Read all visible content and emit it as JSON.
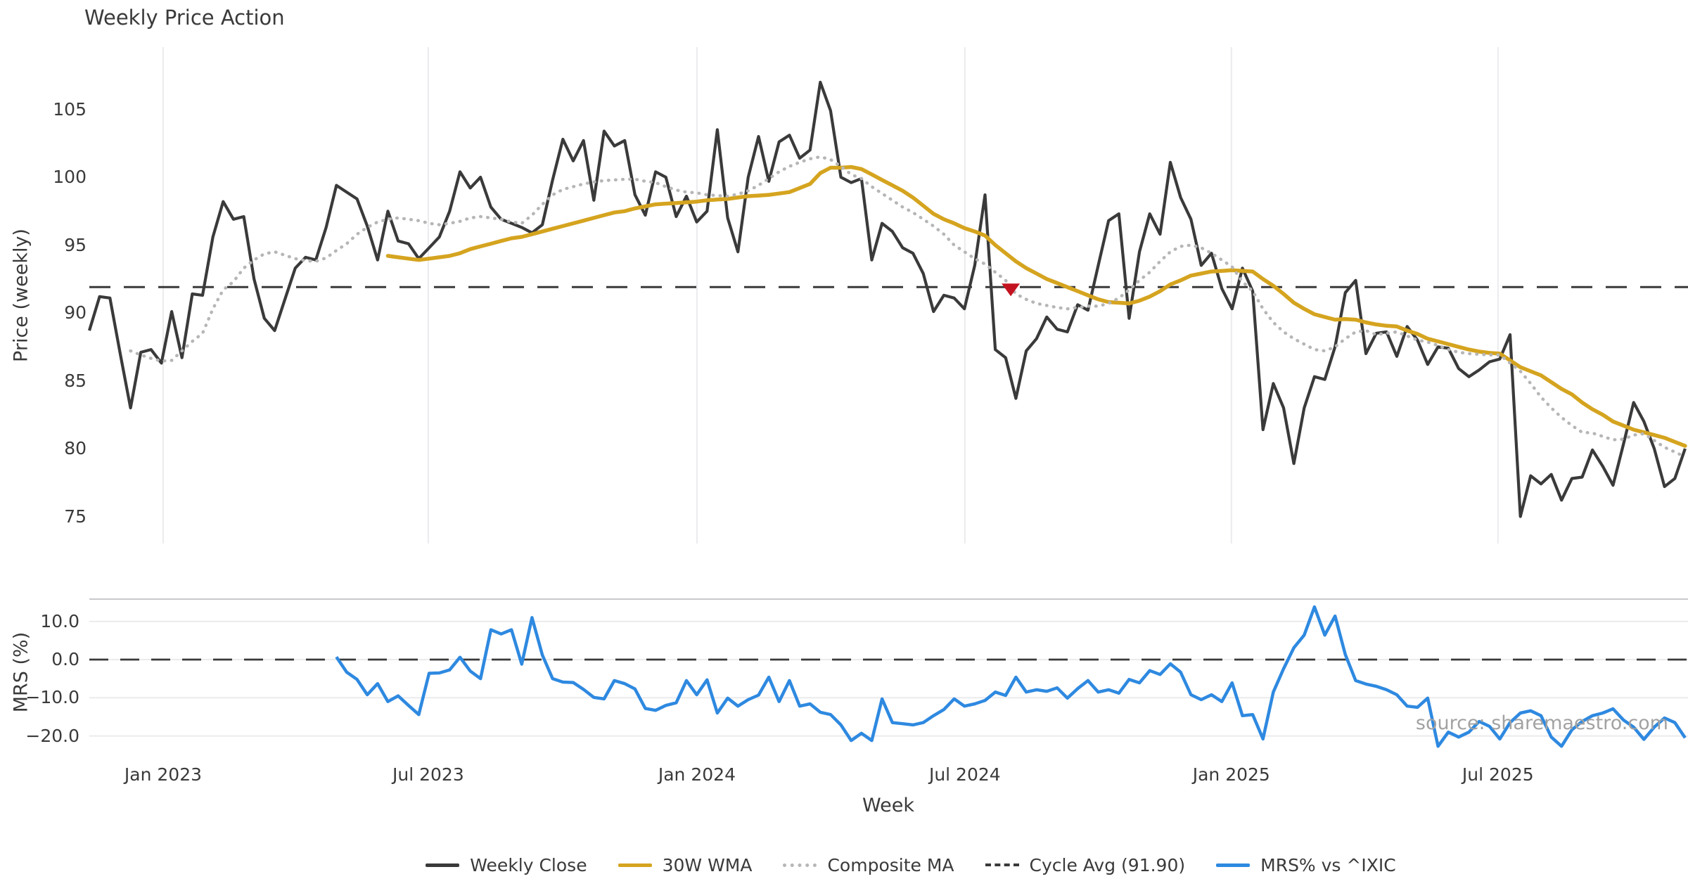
{
  "title": "Weekly Price Action",
  "watermark": "source: sharemaestro.com",
  "colors": {
    "dark": "#3a3a3a",
    "gold": "#d5a41f",
    "composite": "#b6b6b8",
    "blue": "#2e89e0",
    "red": "#c41320",
    "gridline": "#ebebee",
    "spine": "#c9c9cc",
    "watermark": "#a2a2a2"
  },
  "legend": [
    {
      "label": "Weekly Close",
      "style": "solid",
      "color": "#3a3a3a"
    },
    {
      "label": "30W WMA",
      "style": "solid",
      "color": "#d5a41f"
    },
    {
      "label": "Composite MA",
      "style": "dotted",
      "color": "#b6b6b8"
    },
    {
      "label": "Cycle Avg (91.90)",
      "style": "dashed",
      "color": "#3a3a3a"
    },
    {
      "label": "MRS% vs ^IXIC",
      "style": "solid",
      "color": "#2e89e0"
    }
  ],
  "chart_data": {
    "type": "line",
    "title": "Weekly Price Action",
    "xlabel": "Week",
    "x_unit": "weeks starting mid-Nov 2022",
    "cycle_avg": 91.9,
    "sell_marker": {
      "week": 89.5,
      "price": 91.75
    },
    "x_ticks": [
      {
        "label": "Jan 2023",
        "week": 7.17
      },
      {
        "label": "Jul 2023",
        "week": 32.92
      },
      {
        "label": "Jan 2024",
        "week": 59.02
      },
      {
        "label": "Jul 2024",
        "week": 85.04
      },
      {
        "label": "Jan 2025",
        "week": 110.93
      },
      {
        "label": "Jul 2025",
        "week": 136.82
      }
    ],
    "panels": [
      {
        "name": "price",
        "ylabel": "Price (weekly)",
        "ylim": [
          72.8,
          109.5
        ],
        "grid": "vertical",
        "yticks": [
          {
            "label": "105",
            "value": 105
          },
          {
            "label": "100",
            "value": 100
          },
          {
            "label": "95",
            "value": 95
          },
          {
            "label": "90",
            "value": 90
          },
          {
            "label": "85",
            "value": 85
          },
          {
            "label": "80",
            "value": 80
          },
          {
            "label": "75",
            "value": 75
          }
        ]
      },
      {
        "name": "mrs",
        "ylabel": "MRS (%)",
        "ylim": [
          -23.4,
          15.8
        ],
        "grid": "horizontal",
        "yticks": [
          {
            "label": "10.0",
            "value": 10
          },
          {
            "label": "0.0",
            "value": 0
          },
          {
            "label": "−10.0",
            "value": -10
          },
          {
            "label": "−20.0",
            "value": -20
          }
        ]
      }
    ],
    "series": [
      {
        "name": "Weekly Close",
        "panel": "price",
        "start_week": 0,
        "values": [
          88.7,
          91.2,
          91.1,
          87.0,
          83.0,
          87.1,
          87.3,
          86.3,
          90.1,
          86.7,
          91.4,
          91.3,
          95.6,
          98.2,
          96.9,
          97.1,
          92.5,
          89.6,
          88.7,
          91.0,
          93.3,
          94.1,
          93.9,
          96.3,
          99.4,
          98.9,
          98.4,
          96.4,
          93.9,
          97.5,
          95.3,
          95.1,
          94.0,
          94.8,
          95.6,
          97.5,
          100.4,
          99.2,
          100.0,
          97.8,
          96.9,
          96.6,
          96.3,
          95.9,
          96.5,
          99.8,
          102.8,
          101.2,
          102.7,
          98.3,
          103.4,
          102.3,
          102.7,
          98.7,
          97.2,
          100.4,
          100.0,
          97.1,
          98.6,
          96.7,
          97.5,
          103.5,
          97.0,
          94.5,
          100.0,
          103.0,
          99.7,
          102.6,
          103.1,
          101.4,
          102.0,
          107.0,
          104.9,
          100.0,
          99.6,
          99.9,
          93.9,
          96.6,
          96.0,
          94.8,
          94.4,
          92.9,
          90.1,
          91.3,
          91.1,
          90.3,
          93.5,
          98.7,
          87.3,
          86.7,
          83.7,
          87.2,
          88.1,
          89.7,
          88.8,
          88.6,
          90.6,
          90.2,
          93.5,
          96.8,
          97.3,
          89.6,
          94.5,
          97.3,
          95.8,
          101.1,
          98.5,
          96.9,
          93.5,
          94.4,
          91.8,
          90.3,
          93.3,
          91.6,
          81.4,
          84.8,
          83.0,
          78.9,
          83.0,
          85.3,
          85.1,
          87.5,
          91.5,
          92.4,
          87.0,
          88.5,
          88.6,
          86.8,
          89.0,
          88.0,
          86.2,
          87.5,
          87.4,
          85.9,
          85.3,
          85.8,
          86.4,
          86.6,
          88.4,
          75.0,
          78.0,
          77.4,
          78.1,
          76.2,
          77.8,
          77.9,
          79.9,
          78.7,
          77.3,
          80.3,
          83.4,
          82.0,
          80.0,
          77.2,
          77.8,
          80.0
        ]
      },
      {
        "name": "30W WMA",
        "panel": "price",
        "start_week": 29,
        "values": [
          94.2,
          94.1,
          94.0,
          93.9,
          94.0,
          94.1,
          94.2,
          94.4,
          94.7,
          94.9,
          95.1,
          95.3,
          95.5,
          95.6,
          95.8,
          96.0,
          96.2,
          96.4,
          96.6,
          96.8,
          97.0,
          97.2,
          97.4,
          97.5,
          97.7,
          97.85,
          98.0,
          98.05,
          98.1,
          98.15,
          98.2,
          98.3,
          98.35,
          98.4,
          98.5,
          98.6,
          98.65,
          98.7,
          98.8,
          98.9,
          99.2,
          99.5,
          100.3,
          100.7,
          100.7,
          100.75,
          100.6,
          100.2,
          99.8,
          99.4,
          99.0,
          98.5,
          97.9,
          97.3,
          96.9,
          96.6,
          96.25,
          96.0,
          95.7,
          95.0,
          94.4,
          93.8,
          93.3,
          92.9,
          92.5,
          92.2,
          91.9,
          91.6,
          91.3,
          91.0,
          90.8,
          90.75,
          90.7,
          90.9,
          91.2,
          91.6,
          92.1,
          92.4,
          92.75,
          92.9,
          93.05,
          93.1,
          93.15,
          93.1,
          93.05,
          92.5,
          92.0,
          91.4,
          90.75,
          90.3,
          89.9,
          89.7,
          89.5,
          89.55,
          89.5,
          89.3,
          89.15,
          89.05,
          89.0,
          88.7,
          88.45,
          88.1,
          87.9,
          87.7,
          87.5,
          87.3,
          87.15,
          87.05,
          87.0,
          86.5,
          86.0,
          85.7,
          85.4,
          84.9,
          84.4,
          84.0,
          83.4,
          82.9,
          82.5,
          82.0,
          81.7,
          81.4,
          81.2,
          81.0,
          80.8,
          80.5,
          80.2
        ]
      },
      {
        "name": "Composite MA",
        "panel": "price",
        "start_week": 4,
        "values": [
          87.2,
          86.9,
          86.65,
          86.45,
          86.5,
          87.2,
          87.9,
          88.5,
          90.3,
          91.7,
          92.3,
          93.3,
          93.9,
          94.35,
          94.5,
          94.25,
          94.0,
          93.85,
          93.8,
          94.05,
          94.6,
          95.1,
          95.8,
          96.3,
          96.7,
          96.9,
          97.0,
          96.9,
          96.8,
          96.6,
          96.5,
          96.6,
          96.75,
          97.0,
          97.1,
          97.0,
          96.9,
          96.7,
          96.6,
          97.2,
          98.0,
          98.7,
          99.1,
          99.3,
          99.5,
          99.65,
          99.75,
          99.8,
          99.85,
          99.85,
          99.7,
          99.6,
          99.3,
          99.05,
          98.9,
          98.85,
          98.7,
          98.65,
          98.6,
          98.75,
          99.0,
          99.4,
          99.9,
          100.4,
          100.8,
          101.1,
          101.35,
          101.5,
          101.3,
          100.8,
          100.2,
          99.9,
          99.3,
          98.8,
          98.3,
          97.8,
          97.4,
          96.9,
          96.4,
          95.8,
          95.0,
          94.5,
          94.0,
          93.6,
          93.0,
          92.4,
          91.4,
          91.0,
          90.7,
          90.55,
          90.4,
          90.3,
          90.4,
          90.5,
          90.5,
          90.7,
          91.1,
          91.7,
          92.4,
          93.0,
          93.8,
          94.5,
          94.9,
          95.0,
          94.8,
          94.4,
          93.9,
          93.4,
          92.3,
          91.6,
          90.3,
          89.3,
          88.6,
          88.1,
          87.7,
          87.3,
          87.2,
          87.5,
          88.1,
          88.6,
          88.7,
          88.4,
          88.5,
          88.6,
          88.3,
          88.0,
          87.85,
          87.6,
          87.3,
          87.1,
          87.0,
          86.95,
          86.9,
          86.9,
          86.3,
          85.7,
          84.8,
          83.8,
          83.0,
          82.3,
          81.7,
          81.2,
          81.15,
          80.9,
          80.65,
          80.7,
          81.0,
          81.1,
          80.6,
          80.1,
          79.75,
          79.4
        ]
      },
      {
        "name": "MRS% vs ^IXIC",
        "panel": "mrs",
        "start_week": 24,
        "values": [
          0.7,
          -3.3,
          -5.2,
          -9.2,
          -6.3,
          -11.0,
          -9.5,
          -12.0,
          -14.4,
          -3.6,
          -3.5,
          -2.7,
          0.6,
          -3.0,
          -5.0,
          7.8,
          6.7,
          7.8,
          -1.2,
          11.0,
          1.2,
          -5.0,
          -5.9,
          -6.0,
          -7.8,
          -9.9,
          -10.3,
          -5.5,
          -6.3,
          -7.7,
          -12.8,
          -13.3,
          -12.0,
          -11.3,
          -5.5,
          -9.2,
          -5.3,
          -14.0,
          -10.1,
          -12.2,
          -10.5,
          -9.3,
          -4.6,
          -11.0,
          -5.5,
          -12.2,
          -11.6,
          -13.8,
          -14.4,
          -17.1,
          -21.2,
          -19.3,
          -21.2,
          -10.3,
          -16.5,
          -16.8,
          -17.1,
          -16.5,
          -14.7,
          -13.1,
          -10.3,
          -12.2,
          -11.6,
          -10.7,
          -8.5,
          -9.4,
          -4.6,
          -8.5,
          -7.9,
          -8.3,
          -7.4,
          -10.1,
          -7.6,
          -5.5,
          -8.5,
          -7.9,
          -8.8,
          -5.2,
          -6.1,
          -2.9,
          -3.9,
          -1.1,
          -3.3,
          -9.2,
          -10.5,
          -9.2,
          -11.0,
          -6.1,
          -14.7,
          -14.4,
          -20.8,
          -8.5,
          -2.4,
          3.1,
          6.4,
          13.8,
          6.4,
          11.4,
          1.3,
          -5.5,
          -6.4,
          -7.0,
          -7.9,
          -9.2,
          -12.2,
          -12.5,
          -10.1,
          -22.7,
          -19.0,
          -20.3,
          -19.0,
          -16.2,
          -17.5,
          -20.8,
          -16.5,
          -14.0,
          -13.4,
          -14.7,
          -20.3,
          -22.7,
          -18.4,
          -16.2,
          -14.7,
          -14.0,
          -12.9,
          -15.8,
          -17.7,
          -20.9,
          -17.7,
          -15.3,
          -16.5,
          -20.5
        ]
      }
    ]
  }
}
